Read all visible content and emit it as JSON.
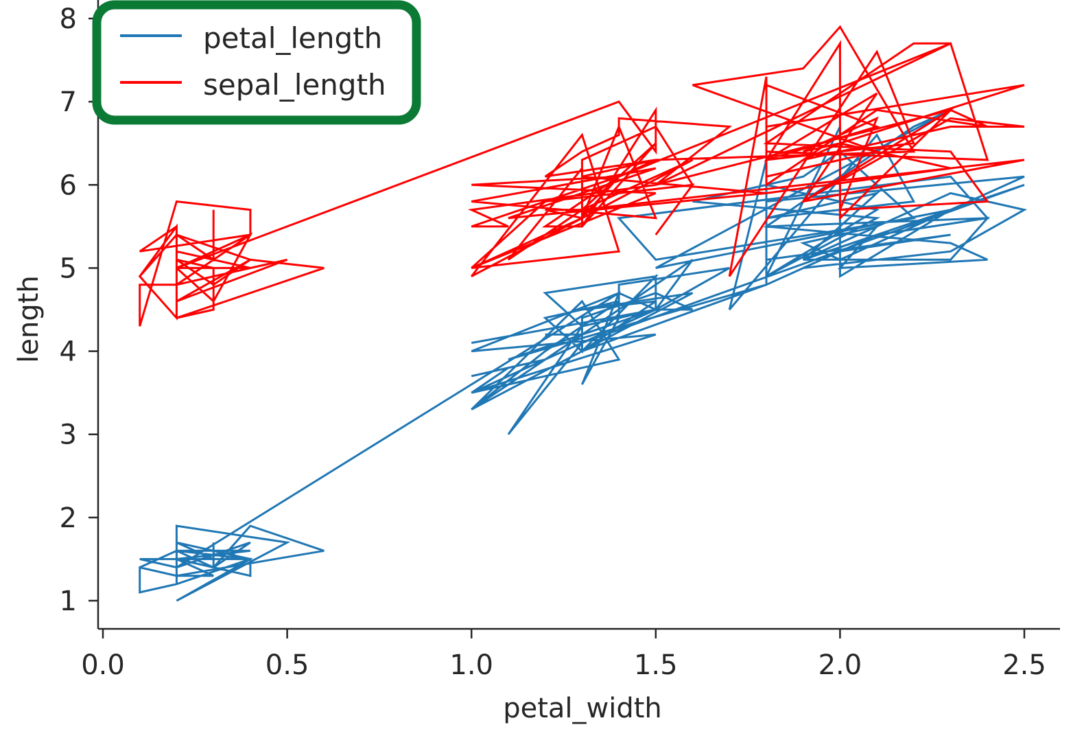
{
  "chart_data": {
    "type": "line",
    "xlabel": "petal_width",
    "ylabel": "length",
    "xlim": [
      -0.02,
      2.58
    ],
    "ylim": [
      0.65,
      8.2
    ],
    "xticks": [
      {
        "value": 0.0,
        "label": "0.0"
      },
      {
        "value": 0.5,
        "label": "0.5"
      },
      {
        "value": 1.0,
        "label": "1.0"
      },
      {
        "value": 1.5,
        "label": "1.5"
      },
      {
        "value": 2.0,
        "label": "2.0"
      },
      {
        "value": 2.5,
        "label": "2.5"
      }
    ],
    "yticks": [
      {
        "value": 1,
        "label": "1"
      },
      {
        "value": 2,
        "label": "2"
      },
      {
        "value": 3,
        "label": "3"
      },
      {
        "value": 4,
        "label": "4"
      },
      {
        "value": 5,
        "label": "5"
      },
      {
        "value": 6,
        "label": "6"
      },
      {
        "value": 7,
        "label": "7"
      },
      {
        "value": 8,
        "label": "8"
      }
    ],
    "grid": false,
    "legend_position": "top-left",
    "series": [
      {
        "name": "petal_length",
        "color": "#1f77b4",
        "x": [
          0.2,
          0.2,
          0.2,
          0.2,
          0.2,
          0.4,
          0.3,
          0.2,
          0.2,
          0.1,
          0.2,
          0.2,
          0.1,
          0.1,
          0.2,
          0.4,
          0.4,
          0.3,
          0.3,
          0.3,
          0.2,
          0.4,
          0.2,
          0.5,
          0.2,
          0.2,
          0.4,
          0.2,
          0.2,
          0.2,
          0.2,
          0.4,
          0.1,
          0.2,
          0.2,
          0.2,
          0.2,
          0.1,
          0.2,
          0.2,
          0.3,
          0.3,
          0.2,
          0.6,
          0.4,
          0.3,
          0.2,
          0.2,
          0.2,
          0.2,
          1.4,
          1.5,
          1.5,
          1.3,
          1.5,
          1.3,
          1.6,
          1.0,
          1.3,
          1.4,
          1.0,
          1.5,
          1.0,
          1.4,
          1.3,
          1.4,
          1.5,
          1.0,
          1.5,
          1.1,
          1.8,
          1.3,
          1.5,
          1.2,
          1.3,
          1.4,
          1.4,
          1.7,
          1.5,
          1.0,
          1.1,
          1.0,
          1.2,
          1.6,
          1.5,
          1.6,
          1.5,
          1.3,
          1.3,
          1.3,
          1.2,
          1.4,
          1.2,
          1.0,
          1.3,
          1.2,
          1.3,
          1.3,
          1.1,
          1.3,
          2.5,
          1.9,
          2.1,
          1.8,
          2.2,
          2.1,
          1.7,
          1.8,
          1.8,
          2.5,
          2.0,
          1.9,
          2.1,
          2.0,
          2.4,
          2.3,
          1.8,
          2.2,
          2.3,
          1.5,
          2.3,
          2.0,
          2.0,
          1.8,
          2.1,
          1.8,
          1.8,
          1.8,
          2.1,
          1.6,
          1.9,
          2.0,
          2.2,
          1.5,
          1.4,
          2.3,
          2.4,
          1.8,
          1.8,
          2.1,
          2.4,
          2.3,
          1.9,
          2.3,
          2.5,
          2.3,
          1.9,
          2.0,
          2.3,
          1.8
        ],
        "y": [
          1.4,
          1.4,
          1.3,
          1.5,
          1.4,
          1.7,
          1.4,
          1.5,
          1.4,
          1.5,
          1.5,
          1.6,
          1.4,
          1.1,
          1.2,
          1.5,
          1.3,
          1.4,
          1.7,
          1.5,
          1.7,
          1.5,
          1.0,
          1.7,
          1.9,
          1.6,
          1.6,
          1.5,
          1.4,
          1.6,
          1.6,
          1.5,
          1.5,
          1.4,
          1.5,
          1.2,
          1.3,
          1.4,
          1.3,
          1.5,
          1.3,
          1.3,
          1.3,
          1.6,
          1.9,
          1.4,
          1.6,
          1.4,
          1.5,
          1.4,
          4.7,
          4.5,
          4.9,
          4.0,
          4.6,
          4.5,
          4.7,
          3.3,
          4.6,
          3.9,
          3.5,
          4.2,
          4.0,
          4.7,
          3.6,
          4.4,
          4.5,
          4.1,
          4.5,
          3.9,
          4.8,
          4.0,
          4.9,
          4.7,
          4.3,
          4.4,
          4.8,
          5.0,
          4.5,
          3.5,
          3.8,
          3.7,
          3.9,
          5.1,
          4.5,
          4.5,
          4.7,
          4.4,
          4.1,
          4.0,
          4.4,
          4.6,
          4.0,
          3.3,
          4.2,
          4.2,
          4.2,
          4.3,
          3.0,
          4.1,
          6.0,
          5.1,
          5.9,
          5.6,
          5.8,
          6.6,
          4.5,
          6.3,
          5.8,
          6.1,
          5.1,
          5.3,
          5.5,
          5.0,
          5.1,
          5.3,
          5.5,
          6.7,
          6.9,
          5.0,
          5.7,
          4.9,
          6.7,
          4.9,
          5.7,
          6.0,
          4.8,
          4.9,
          5.6,
          5.8,
          6.1,
          6.4,
          5.6,
          5.1,
          5.6,
          6.1,
          5.6,
          5.5,
          4.8,
          5.4,
          5.6,
          5.1,
          5.1,
          5.9,
          5.7,
          5.2,
          5.0,
          5.2,
          5.4,
          5.1
        ]
      },
      {
        "name": "sepal_length",
        "color": "#ff0000",
        "x": [
          0.2,
          0.2,
          0.2,
          0.2,
          0.2,
          0.4,
          0.3,
          0.2,
          0.2,
          0.1,
          0.2,
          0.2,
          0.1,
          0.1,
          0.2,
          0.4,
          0.4,
          0.3,
          0.3,
          0.3,
          0.2,
          0.4,
          0.2,
          0.5,
          0.2,
          0.2,
          0.4,
          0.2,
          0.2,
          0.2,
          0.2,
          0.4,
          0.1,
          0.2,
          0.2,
          0.2,
          0.2,
          0.1,
          0.2,
          0.2,
          0.3,
          0.3,
          0.2,
          0.6,
          0.4,
          0.3,
          0.2,
          0.2,
          0.2,
          0.2,
          1.4,
          1.5,
          1.5,
          1.3,
          1.5,
          1.3,
          1.6,
          1.0,
          1.3,
          1.4,
          1.0,
          1.5,
          1.0,
          1.4,
          1.3,
          1.4,
          1.5,
          1.0,
          1.5,
          1.1,
          1.8,
          1.3,
          1.5,
          1.2,
          1.3,
          1.4,
          1.4,
          1.7,
          1.5,
          1.0,
          1.1,
          1.0,
          1.2,
          1.6,
          1.5,
          1.6,
          1.5,
          1.3,
          1.3,
          1.3,
          1.2,
          1.4,
          1.2,
          1.0,
          1.3,
          1.2,
          1.3,
          1.3,
          1.1,
          1.3,
          2.5,
          1.9,
          2.1,
          1.8,
          2.2,
          2.1,
          1.7,
          1.8,
          1.8,
          2.5,
          2.0,
          1.9,
          2.1,
          2.0,
          2.4,
          2.3,
          1.8,
          2.2,
          2.3,
          1.5,
          2.3,
          2.0,
          2.0,
          1.8,
          2.1,
          1.8,
          1.8,
          1.8,
          2.1,
          1.6,
          1.9,
          2.0,
          2.2,
          1.5,
          1.4,
          2.3,
          2.4,
          1.8,
          1.8,
          2.1,
          2.4,
          2.3,
          1.9,
          2.3,
          2.5,
          2.3,
          1.9,
          2.0,
          2.3,
          1.8
        ],
        "y": [
          5.1,
          4.9,
          4.7,
          4.6,
          5.0,
          5.4,
          4.6,
          5.0,
          4.4,
          4.9,
          5.4,
          4.8,
          4.8,
          4.3,
          5.8,
          5.7,
          5.4,
          5.1,
          5.7,
          5.1,
          5.4,
          5.1,
          4.6,
          5.1,
          4.8,
          5.0,
          5.0,
          5.2,
          5.2,
          4.7,
          4.8,
          5.4,
          5.2,
          5.5,
          4.9,
          5.0,
          5.5,
          4.9,
          4.4,
          5.1,
          5.0,
          4.5,
          4.4,
          5.0,
          5.1,
          4.8,
          5.1,
          4.6,
          5.3,
          5.0,
          7.0,
          6.4,
          6.9,
          5.5,
          6.5,
          5.7,
          6.3,
          4.9,
          6.6,
          5.2,
          5.0,
          5.9,
          6.0,
          6.1,
          5.6,
          6.7,
          5.6,
          5.8,
          6.2,
          5.6,
          5.9,
          6.1,
          6.3,
          6.1,
          6.4,
          6.6,
          6.8,
          6.7,
          6.0,
          5.7,
          5.5,
          5.5,
          5.8,
          6.0,
          5.4,
          6.0,
          6.7,
          6.3,
          5.6,
          5.5,
          5.5,
          6.1,
          5.8,
          5.0,
          5.6,
          5.7,
          5.7,
          6.2,
          5.1,
          5.7,
          6.3,
          5.8,
          7.1,
          6.3,
          6.5,
          7.6,
          4.9,
          7.3,
          6.7,
          7.2,
          6.5,
          6.4,
          6.8,
          5.7,
          5.8,
          6.4,
          6.5,
          7.7,
          7.7,
          6.0,
          6.9,
          5.6,
          7.7,
          6.3,
          6.7,
          7.2,
          6.2,
          6.1,
          6.4,
          7.2,
          7.4,
          7.9,
          6.4,
          6.3,
          6.1,
          7.7,
          6.3,
          6.4,
          6.0,
          6.9,
          6.7,
          6.9,
          5.8,
          6.8,
          6.7,
          6.7,
          6.3,
          6.5,
          6.2,
          5.9
        ]
      }
    ]
  },
  "legend": {
    "items": [
      {
        "label": "petal_length",
        "color": "#1f77b4"
      },
      {
        "label": "sepal_length",
        "color": "#ff0000"
      }
    ],
    "highlight_color": "#0a7a34"
  }
}
